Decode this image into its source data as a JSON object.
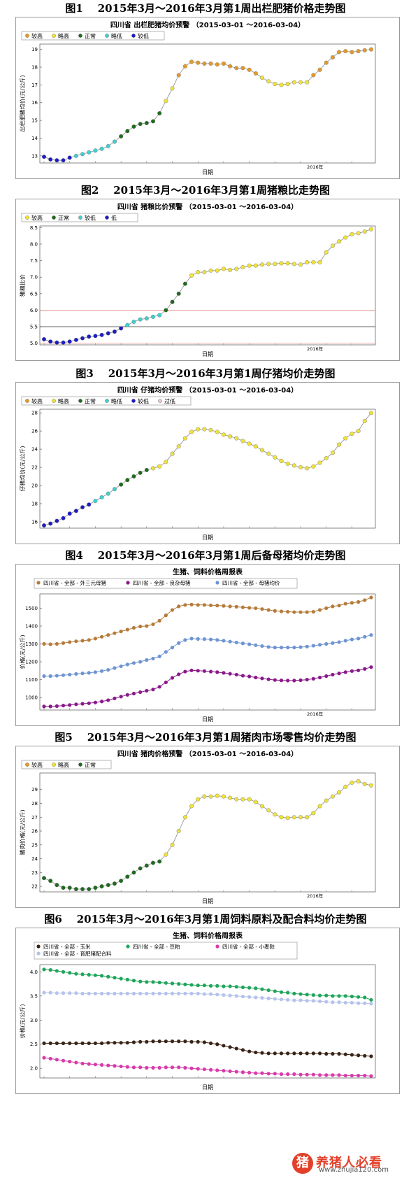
{
  "watermark": {
    "seal": "猪",
    "brand": "养猪人必看",
    "url": "www.zhujia120.com"
  },
  "chart_data": [
    {
      "type": "line",
      "figure_title": "图1    2015年3月～2016年3月第1周出栏肥猪价格走势图",
      "title": "四川省 出栏肥猪均价预警 （2015-03-01 ～2016-03-04）",
      "xlabel": "日期",
      "ylabel": "出栏肥猪均价(元/公斤)",
      "x_tick_labels": [
        "2016年"
      ],
      "ylim": [
        12.6,
        19.3
      ],
      "yticks": [
        13,
        14,
        15,
        16,
        17,
        18,
        19
      ],
      "legend": [
        {
          "label": "较高",
          "color": "#e39a2b"
        },
        {
          "label": "略高",
          "color": "#f0e33a"
        },
        {
          "label": "正常",
          "color": "#1e6b1e"
        },
        {
          "label": "略低",
          "color": "#3fd0d0"
        },
        {
          "label": "较低",
          "color": "#1c1cc8"
        }
      ],
      "series": [
        {
          "values": [
            12.95,
            12.8,
            12.75,
            12.75,
            12.9,
            13.0,
            13.1,
            13.2,
            13.3,
            13.4,
            13.55,
            13.8,
            14.1,
            14.4,
            14.65,
            14.8,
            14.85,
            14.95,
            15.4,
            16.1,
            16.8,
            17.55,
            18.05,
            18.3,
            18.25,
            18.2,
            18.2,
            18.15,
            18.2,
            18.05,
            17.95,
            17.95,
            17.85,
            17.65,
            17.4,
            17.2,
            17.05,
            17.0,
            17.05,
            17.15,
            17.15,
            17.15,
            17.55,
            17.85,
            18.25,
            18.55,
            18.85,
            18.9,
            18.85,
            18.9,
            18.95,
            19.0
          ]
        }
      ]
    },
    {
      "type": "line",
      "figure_title": "图2    2015年3月～2016年3月第1周猪粮比走势图",
      "title": "四川省 猪粮比价预警 （2015-03-01 ～2016-03-04）",
      "xlabel": "日期",
      "ylabel": "猪粮比价",
      "x_tick_labels": [
        "2016年"
      ],
      "ylim": [
        4.95,
        8.55
      ],
      "yticks": [
        5.0,
        5.5,
        6.0,
        6.5,
        7.0,
        7.5,
        8.0,
        8.5
      ],
      "reference_lines": [
        6.0,
        5.5,
        5.0
      ],
      "legend": [
        {
          "label": "较高",
          "color": "#f0e33a"
        },
        {
          "label": "正常",
          "color": "#1e6b1e"
        },
        {
          "label": "较低",
          "color": "#3fd0d0"
        },
        {
          "label": "低",
          "color": "#1c1cc8"
        }
      ],
      "series": [
        {
          "values": [
            5.12,
            5.05,
            5.02,
            5.02,
            5.05,
            5.1,
            5.15,
            5.2,
            5.22,
            5.25,
            5.3,
            5.35,
            5.45,
            5.55,
            5.65,
            5.72,
            5.75,
            5.8,
            5.85,
            6.0,
            6.25,
            6.5,
            6.8,
            7.05,
            7.15,
            7.15,
            7.2,
            7.2,
            7.25,
            7.22,
            7.25,
            7.3,
            7.35,
            7.35,
            7.38,
            7.4,
            7.4,
            7.42,
            7.42,
            7.4,
            7.38,
            7.45,
            7.45,
            7.45,
            7.75,
            7.95,
            8.08,
            8.2,
            8.3,
            8.33,
            8.38,
            8.45
          ]
        }
      ]
    },
    {
      "type": "line",
      "figure_title": "图3    2015年3月～2016年3月第1周仔猪均价走势图",
      "title": "四川省 仔猪均价预警 （2015-03-01 ～2016-03-04）",
      "xlabel": "日期",
      "ylabel": "仔猪均价(元/公斤)",
      "ylim": [
        15.3,
        28.4
      ],
      "yticks": [
        16,
        18,
        20,
        22,
        24,
        26,
        28
      ],
      "legend": [
        {
          "label": "较高",
          "color": "#e39a2b"
        },
        {
          "label": "略高",
          "color": "#f0e33a"
        },
        {
          "label": "正常",
          "color": "#1e6b1e"
        },
        {
          "label": "略低",
          "color": "#3fd0d0"
        },
        {
          "label": "较低",
          "color": "#1c1cc8"
        },
        {
          "label": "过低",
          "color": "#f3c7c7"
        }
      ],
      "series": [
        {
          "values": [
            15.6,
            15.8,
            16.1,
            16.4,
            16.9,
            17.2,
            17.6,
            17.9,
            18.3,
            18.7,
            19.1,
            19.6,
            20.1,
            20.6,
            21.0,
            21.4,
            21.7,
            21.9,
            22.1,
            22.6,
            23.5,
            24.3,
            25.2,
            25.9,
            26.2,
            26.2,
            26.1,
            25.9,
            25.6,
            25.4,
            25.2,
            24.9,
            24.6,
            24.3,
            23.9,
            23.5,
            23.1,
            22.7,
            22.4,
            22.2,
            22.0,
            21.9,
            22.1,
            22.5,
            23.0,
            23.6,
            24.5,
            25.2,
            25.7,
            26.0,
            27.1,
            28.0
          ]
        }
      ]
    },
    {
      "type": "line",
      "figure_title": "图4    2015年3月～2016年3月第1周后备母猪均价走势图",
      "title": "生猪、饲料价格周报表",
      "xlabel": "日期",
      "ylabel": "价格(元/公斤)",
      "x_tick_labels": [
        "2016年"
      ],
      "ylim": [
        930,
        1580
      ],
      "yticks": [
        1000,
        1100,
        1200,
        1300,
        1400,
        1500
      ],
      "series": [
        {
          "name": "四川省 - 全部 - 外三元母猪",
          "color": "#b67b3a",
          "values": [
            1300,
            1298,
            1300,
            1305,
            1310,
            1315,
            1318,
            1322,
            1330,
            1340,
            1350,
            1360,
            1370,
            1380,
            1390,
            1398,
            1400,
            1410,
            1430,
            1460,
            1490,
            1510,
            1518,
            1520,
            1518,
            1518,
            1516,
            1515,
            1513,
            1510,
            1508,
            1505,
            1502,
            1500,
            1495,
            1490,
            1485,
            1482,
            1480,
            1478,
            1478,
            1478,
            1480,
            1490,
            1500,
            1510,
            1515,
            1525,
            1530,
            1535,
            1545,
            1560
          ]
        },
        {
          "name": "四川省 - 全部 - 良杂母猪",
          "color": "#8a1a8a",
          "values": [
            950,
            950,
            952,
            955,
            958,
            962,
            965,
            968,
            972,
            978,
            985,
            995,
            1005,
            1015,
            1022,
            1030,
            1038,
            1045,
            1060,
            1085,
            1110,
            1130,
            1145,
            1152,
            1150,
            1148,
            1145,
            1142,
            1138,
            1133,
            1128,
            1122,
            1118,
            1112,
            1107,
            1102,
            1098,
            1096,
            1095,
            1095,
            1097,
            1100,
            1105,
            1112,
            1120,
            1128,
            1135,
            1142,
            1148,
            1152,
            1160,
            1170
          ]
        },
        {
          "name": "四川省 - 全部 - 母猪均价",
          "color": "#6f94d2",
          "values": [
            1120,
            1120,
            1122,
            1125,
            1128,
            1132,
            1135,
            1138,
            1142,
            1148,
            1155,
            1165,
            1175,
            1185,
            1193,
            1200,
            1210,
            1218,
            1230,
            1255,
            1280,
            1305,
            1322,
            1330,
            1328,
            1327,
            1325,
            1322,
            1318,
            1313,
            1308,
            1303,
            1298,
            1293,
            1288,
            1283,
            1280,
            1280,
            1280,
            1280,
            1282,
            1285,
            1290,
            1295,
            1300,
            1305,
            1310,
            1318,
            1325,
            1330,
            1340,
            1350
          ]
        }
      ]
    },
    {
      "type": "line",
      "figure_title": "图5    2015年3月～2016年3月第1周猪肉市场零售均价走势图",
      "title": "四川省 猪肉价格预警 （2015-03-01 ～2016-03-04）",
      "xlabel": "日期",
      "ylabel": "猪肉价格(元/公斤)",
      "x_tick_labels": [
        "2016年"
      ],
      "ylim": [
        21.6,
        30.2
      ],
      "yticks": [
        22,
        23,
        24,
        25,
        26,
        27,
        28,
        29
      ],
      "legend": [
        {
          "label": "较高",
          "color": "#e39a2b"
        },
        {
          "label": "略高",
          "color": "#f0e33a"
        },
        {
          "label": "正常",
          "color": "#1e6b1e"
        }
      ],
      "series": [
        {
          "values": [
            22.6,
            22.4,
            22.1,
            21.9,
            21.9,
            21.8,
            21.8,
            21.8,
            21.9,
            22.0,
            22.1,
            22.2,
            22.4,
            22.7,
            23.0,
            23.3,
            23.5,
            23.7,
            23.8,
            24.3,
            25.0,
            26.0,
            27.0,
            27.8,
            28.3,
            28.5,
            28.5,
            28.55,
            28.5,
            28.4,
            28.3,
            28.3,
            28.3,
            28.1,
            27.8,
            27.5,
            27.2,
            27.0,
            26.95,
            27.0,
            27.0,
            27.0,
            27.3,
            27.8,
            28.2,
            28.5,
            28.8,
            29.2,
            29.5,
            29.6,
            29.4,
            29.3
          ]
        }
      ]
    },
    {
      "type": "line",
      "figure_title": "图6    2015年3月～2016年3月第1周饲料原料及配合料均价走势图",
      "title": "生猪、饲料价格周报表",
      "xlabel": "日期",
      "ylabel": "价格(元/公斤)",
      "ylim": [
        1.8,
        4.15
      ],
      "yticks": [
        2.0,
        2.5,
        3.0,
        3.5,
        4.0
      ],
      "series": [
        {
          "name": "四川省 - 全部 - 玉米",
          "color": "#3a2317",
          "values": [
            2.52,
            2.52,
            2.52,
            2.52,
            2.52,
            2.52,
            2.52,
            2.52,
            2.52,
            2.52,
            2.53,
            2.53,
            2.53,
            2.53,
            2.54,
            2.55,
            2.55,
            2.56,
            2.56,
            2.56,
            2.56,
            2.56,
            2.56,
            2.55,
            2.55,
            2.54,
            2.52,
            2.5,
            2.47,
            2.44,
            2.41,
            2.38,
            2.35,
            2.33,
            2.32,
            2.31,
            2.31,
            2.31,
            2.31,
            2.31,
            2.31,
            2.31,
            2.31,
            2.31,
            2.3,
            2.3,
            2.3,
            2.29,
            2.28,
            2.27,
            2.26,
            2.25
          ]
        },
        {
          "name": "四川省 - 全部 - 豆粕",
          "color": "#1fa55a",
          "values": [
            4.05,
            4.04,
            4.02,
            4.0,
            3.98,
            3.96,
            3.95,
            3.94,
            3.93,
            3.92,
            3.9,
            3.88,
            3.86,
            3.84,
            3.82,
            3.8,
            3.79,
            3.79,
            3.78,
            3.77,
            3.76,
            3.75,
            3.74,
            3.73,
            3.72,
            3.72,
            3.71,
            3.71,
            3.7,
            3.7,
            3.69,
            3.68,
            3.67,
            3.66,
            3.64,
            3.62,
            3.6,
            3.58,
            3.57,
            3.55,
            3.54,
            3.53,
            3.52,
            3.51,
            3.51,
            3.5,
            3.5,
            3.5,
            3.49,
            3.48,
            3.47,
            3.42
          ]
        },
        {
          "name": "四川省 - 全部 - 小麦麸",
          "color": "#d63ca8",
          "values": [
            2.22,
            2.2,
            2.18,
            2.16,
            2.14,
            2.12,
            2.1,
            2.09,
            2.08,
            2.07,
            2.06,
            2.05,
            2.04,
            2.03,
            2.02,
            2.02,
            2.01,
            2.01,
            2.01,
            2.02,
            2.02,
            2.02,
            2.01,
            2.0,
            1.99,
            1.98,
            1.97,
            1.96,
            1.95,
            1.94,
            1.93,
            1.92,
            1.91,
            1.9,
            1.9,
            1.89,
            1.89,
            1.88,
            1.88,
            1.88,
            1.87,
            1.87,
            1.87,
            1.86,
            1.86,
            1.86,
            1.86,
            1.85,
            1.85,
            1.85,
            1.85,
            1.84
          ]
        },
        {
          "name": "四川省 - 全部 - 育肥猪配合料",
          "color": "#b6c2ea",
          "values": [
            3.57,
            3.57,
            3.56,
            3.56,
            3.56,
            3.56,
            3.55,
            3.55,
            3.55,
            3.55,
            3.55,
            3.55,
            3.55,
            3.55,
            3.55,
            3.55,
            3.55,
            3.55,
            3.55,
            3.55,
            3.55,
            3.55,
            3.55,
            3.55,
            3.55,
            3.54,
            3.54,
            3.53,
            3.52,
            3.51,
            3.5,
            3.49,
            3.48,
            3.47,
            3.46,
            3.45,
            3.44,
            3.43,
            3.42,
            3.41,
            3.41,
            3.4,
            3.4,
            3.39,
            3.38,
            3.37,
            3.37,
            3.36,
            3.36,
            3.35,
            3.35,
            3.34
          ]
        }
      ]
    }
  ]
}
